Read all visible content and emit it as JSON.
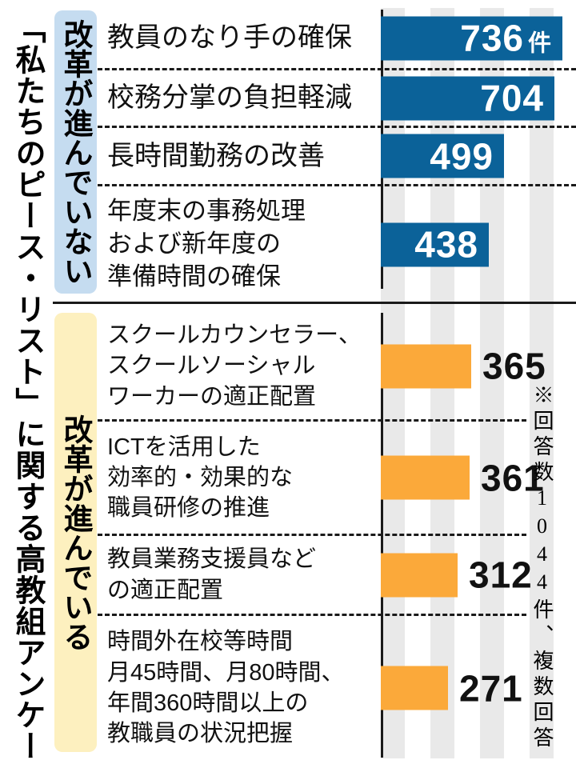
{
  "figure": {
    "title": "「私たちのピース・リスト」に関する高教組アンケート",
    "note": "※回答数1044件、複数回答"
  },
  "chart_data": {
    "type": "bar",
    "orientation": "horizontal",
    "unit": "件",
    "title": "「私たちのピース・リスト」に関する高教組アンケート",
    "annotation": "※回答数1044件、複数回答",
    "total_responses": 1044,
    "grid": "vertical-stripes",
    "sections": [
      {
        "label": "改革が進んでいない",
        "band_color": "#c5dcf0",
        "bar_color": "#0b6299",
        "value_label_position": "inside",
        "value_label_color": "#ffffff",
        "items": [
          {
            "label_lines": [
              "教員のなり手の確保"
            ],
            "value": 736,
            "suffix": "件"
          },
          {
            "label_lines": [
              "校務分掌の負担軽減"
            ],
            "value": 704
          },
          {
            "label_lines": [
              "長時間勤務の改善"
            ],
            "value": 499
          },
          {
            "label_lines": [
              "年度末の事務処理",
              "および新年度の",
              "準備時間の確保"
            ],
            "value": 438
          }
        ]
      },
      {
        "label": "改革が進んでいる",
        "band_color": "#fdf0bf",
        "bar_color": "#fba93a",
        "value_label_position": "outside",
        "value_label_color": "#111111",
        "items": [
          {
            "label_lines": [
              "スクールカウンセラー、",
              "スクールソーシャル",
              "ワーカーの適正配置"
            ],
            "value": 365
          },
          {
            "label_lines": [
              "ICTを活用した",
              "効率的・効果的な",
              "職員研修の推進"
            ],
            "value": 361
          },
          {
            "label_lines": [
              "教員業務支援員など",
              "の適正配置"
            ],
            "value": 312
          },
          {
            "label_lines": [
              "時間外在校等時間",
              "月45時間、月80時間、",
              "年間360時間以上の",
              "教職員の状況把握"
            ],
            "value": 271
          }
        ]
      }
    ]
  }
}
